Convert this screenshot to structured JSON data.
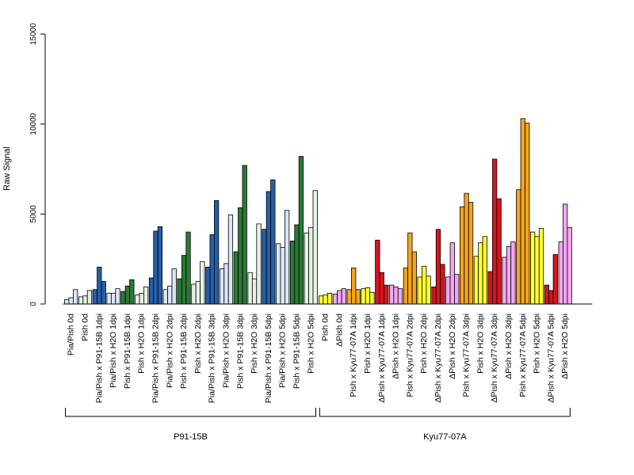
{
  "chart_data": {
    "type": "bar",
    "ylabel": "Raw Signal",
    "ylim": [
      0,
      15000
    ],
    "yticks": [
      0,
      5000,
      10000,
      15000
    ],
    "grid": false,
    "legend": "none",
    "colors": {
      "light_blue": "#dbe6f4",
      "dark_blue": "#2460a8",
      "light_green": "#e6f2e2",
      "dark_green": "#2a7a36",
      "yellow": "#ffff33",
      "orange": "#f5a41b",
      "red": "#d7141f",
      "pink": "#f2a6f0"
    },
    "groups": [
      {
        "label": "P91-15B",
        "categories": [
          {
            "label": "Pia/Pish 0d",
            "color": "light_blue",
            "values": [
              250,
              350,
              800
            ]
          },
          {
            "label": "Pish 0d",
            "color": "light_green",
            "values": [
              400,
              450,
              750
            ]
          },
          {
            "label": "Pia/Pish x P91-15B 1dpi",
            "color": "dark_blue",
            "values": [
              800,
              2050,
              1250
            ]
          },
          {
            "label": "Pia/Pish x H2O 1dpi",
            "color": "light_blue",
            "values": [
              600,
              600,
              850
            ]
          },
          {
            "label": "Pish x P91-15B 1dpi",
            "color": "dark_green",
            "values": [
              700,
              1000,
              1350
            ]
          },
          {
            "label": "Pish x H2O 1dpi",
            "color": "light_green",
            "values": [
              500,
              600,
              950
            ]
          },
          {
            "label": "Pia/Pish x P91-15B 2dpi",
            "color": "dark_blue",
            "values": [
              1450,
              4050,
              4300
            ]
          },
          {
            "label": "Pia/Pish x H2O 2dpi",
            "color": "light_blue",
            "values": [
              800,
              1000,
              1950
            ]
          },
          {
            "label": "Pish x P91-15B 2dpi",
            "color": "dark_green",
            "values": [
              1400,
              2700,
              4000
            ]
          },
          {
            "label": "Pish x H2O 2dpi",
            "color": "light_green",
            "values": [
              1100,
              1250,
              2350
            ]
          },
          {
            "label": "Pia/Pish x P91-15B 3dpi",
            "color": "dark_blue",
            "values": [
              2050,
              3850,
              5750
            ]
          },
          {
            "label": "Pia/Pish x H2O 3dpi",
            "color": "light_blue",
            "values": [
              1950,
              2250,
              4950
            ]
          },
          {
            "label": "Pish x P91-15B 3dpi",
            "color": "dark_green",
            "values": [
              2900,
              5350,
              7700
            ]
          },
          {
            "label": "Pish x H2O 3dpi",
            "color": "light_green",
            "values": [
              1750,
              1400,
              4450
            ]
          },
          {
            "label": "Pia/Pish x P91-15B 5dpi",
            "color": "dark_blue",
            "values": [
              4150,
              6250,
              6900
            ]
          },
          {
            "label": "Pia/Pish x H2O 5dpi",
            "color": "light_blue",
            "values": [
              3350,
              3150,
              5200
            ]
          },
          {
            "label": "Pish x P91-15B 5dpi",
            "color": "dark_green",
            "values": [
              3500,
              4400,
              8200
            ]
          },
          {
            "label": "Pish x H2O 5dpi",
            "color": "light_green",
            "values": [
              3950,
              4250,
              6300
            ]
          }
        ]
      },
      {
        "label": "Kyu77-07A",
        "categories": [
          {
            "label": "Pish 0d",
            "color": "yellow",
            "values": [
              450,
              500,
              600
            ]
          },
          {
            "label": "ΔPish 0d",
            "color": "pink",
            "values": [
              550,
              750,
              850
            ]
          },
          {
            "label": "Pish x Kyu77-07A 1dpi",
            "color": "orange",
            "values": [
              800,
              2000,
              800
            ]
          },
          {
            "label": "Pish x H2O 1dpi",
            "color": "yellow",
            "values": [
              850,
              900,
              650
            ]
          },
          {
            "label": "ΔPish x Kyu77-07A 1dpi",
            "color": "red",
            "values": [
              3550,
              1750,
              1050
            ]
          },
          {
            "label": "ΔPish x H2O 1dpi",
            "color": "pink",
            "values": [
              1050,
              950,
              850
            ]
          },
          {
            "label": "Pish x Kyu77-07A 2dpi",
            "color": "orange",
            "values": [
              2000,
              3950,
              2900
            ]
          },
          {
            "label": "Pish x H2O 2dpi",
            "color": "yellow",
            "values": [
              1500,
              2100,
              1550
            ]
          },
          {
            "label": "ΔPish x Kyu77-07A 2dpi",
            "color": "red",
            "values": [
              950,
              4150,
              2200
            ]
          },
          {
            "label": "ΔPish x H2O 2dpi",
            "color": "pink",
            "values": [
              1500,
              3400,
              1650
            ]
          },
          {
            "label": "Pish x Kyu77-07A 3dpi",
            "color": "orange",
            "values": [
              5400,
              6150,
              5650
            ]
          },
          {
            "label": "Pish x H2O 3dpi",
            "color": "yellow",
            "values": [
              2650,
              3400,
              3750
            ]
          },
          {
            "label": "ΔPish x Kyu77-07A 3dpi",
            "color": "red",
            "values": [
              1800,
              8050,
              5850
            ]
          },
          {
            "label": "ΔPish x H2O 3dpi",
            "color": "pink",
            "values": [
              2600,
              3200,
              3450
            ]
          },
          {
            "label": "Pish x Kyu77-07A 5dpi",
            "color": "orange",
            "values": [
              6350,
              10300,
              10050
            ]
          },
          {
            "label": "Pish x H2O 5dpi",
            "color": "yellow",
            "values": [
              4000,
              3750,
              4200
            ]
          },
          {
            "label": "ΔPish x Kyu77-07A 5dpi",
            "color": "red",
            "values": [
              1050,
              750,
              2750
            ]
          },
          {
            "label": "ΔPish x H2O 5dpi",
            "color": "pink",
            "values": [
              3450,
              5550,
              4250
            ]
          }
        ]
      }
    ]
  }
}
